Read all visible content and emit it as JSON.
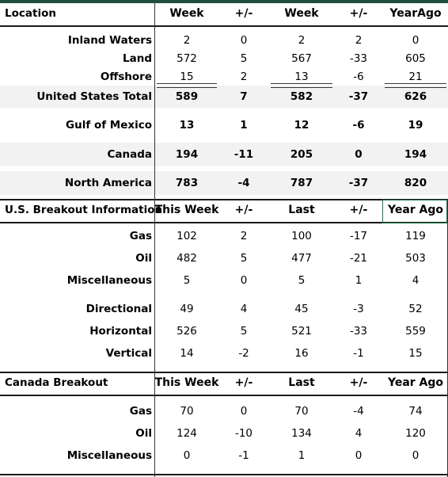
{
  "sections": [
    {
      "id": "location",
      "headers": [
        "Location",
        "Week",
        "+/-",
        "Week",
        "+/-",
        "YearAgo"
      ],
      "rows": [
        {
          "label": "Inland Waters",
          "values": [
            "2",
            "0",
            "2",
            "2",
            "0"
          ]
        },
        {
          "label": "Land",
          "values": [
            "572",
            "5",
            "567",
            "-33",
            "605"
          ]
        },
        {
          "label": "Offshore",
          "values": [
            "15",
            "2",
            "13",
            "-6",
            "21"
          ]
        },
        {
          "label": "United States Total",
          "values": [
            "589",
            "7",
            "582",
            "-37",
            "626"
          ],
          "bold": true,
          "shaded": true
        },
        {
          "label": "Gulf of Mexico",
          "values": [
            "13",
            "1",
            "12",
            "-6",
            "19"
          ],
          "bold": true
        },
        {
          "label": "Canada",
          "values": [
            "194",
            "-11",
            "205",
            "0",
            "194"
          ],
          "bold": true,
          "shaded": true
        },
        {
          "label": "North America",
          "values": [
            "783",
            "-4",
            "787",
            "-37",
            "820"
          ],
          "bold": true,
          "shaded": true
        }
      ]
    },
    {
      "id": "us-breakout",
      "headers": [
        "U.S. Breakout Information",
        "This Week",
        "+/-",
        "Last",
        "+/-",
        "Year Ago"
      ],
      "rows": [
        {
          "label": "Gas",
          "values": [
            "102",
            "2",
            "100",
            "-17",
            "119"
          ]
        },
        {
          "label": "Oil",
          "values": [
            "482",
            "5",
            "477",
            "-21",
            "503"
          ]
        },
        {
          "label": "Miscellaneous",
          "values": [
            "5",
            "0",
            "5",
            "1",
            "4"
          ]
        },
        {
          "label": "Directional",
          "values": [
            "49",
            "4",
            "45",
            "-3",
            "52"
          ]
        },
        {
          "label": "Horizontal",
          "values": [
            "526",
            "5",
            "521",
            "-33",
            "559"
          ]
        },
        {
          "label": "Vertical",
          "values": [
            "14",
            "-2",
            "16",
            "-1",
            "15"
          ]
        }
      ]
    },
    {
      "id": "canada-breakout",
      "headers": [
        "Canada Breakout",
        "This Week",
        "+/-",
        "Last",
        "+/-",
        "Year Ago"
      ],
      "rows": [
        {
          "label": "Gas",
          "values": [
            "70",
            "0",
            "70",
            "-4",
            "74"
          ]
        },
        {
          "label": "Oil",
          "values": [
            "124",
            "-10",
            "134",
            "4",
            "120"
          ]
        },
        {
          "label": "Miscellaneous",
          "values": [
            "0",
            "-1",
            "1",
            "0",
            "0"
          ]
        }
      ]
    }
  ],
  "colors": {
    "accent": "#1f4e3d",
    "shade": "#f2f2f2",
    "selection": "#1f7a4c",
    "rule": "#1a1a1a"
  }
}
